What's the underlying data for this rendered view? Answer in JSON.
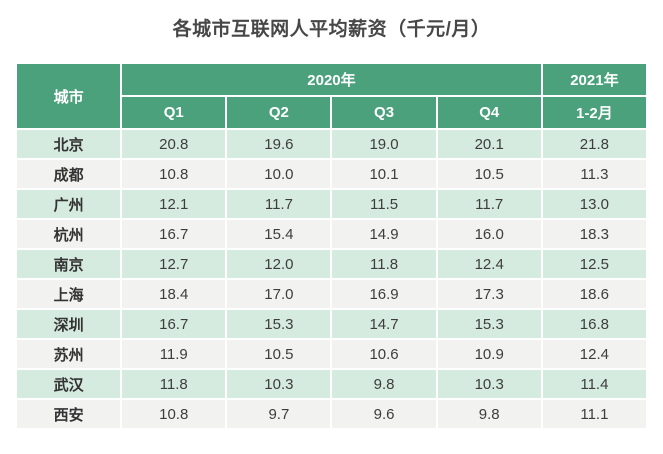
{
  "title": "各城市互联网人平均薪资（千元/月）",
  "table": {
    "city_header": "城市",
    "group_2020": "2020年",
    "group_2021": "2021年",
    "sub_headers": [
      "Q1",
      "Q2",
      "Q3",
      "Q4",
      "1-2月"
    ],
    "rows": [
      {
        "city": "北京",
        "values": [
          "20.8",
          "19.6",
          "19.0",
          "20.1",
          "21.8"
        ]
      },
      {
        "city": "成都",
        "values": [
          "10.8",
          "10.0",
          "10.1",
          "10.5",
          "11.3"
        ]
      },
      {
        "city": "广州",
        "values": [
          "12.1",
          "11.7",
          "11.5",
          "11.7",
          "13.0"
        ]
      },
      {
        "city": "杭州",
        "values": [
          "16.7",
          "15.4",
          "14.9",
          "16.0",
          "18.3"
        ]
      },
      {
        "city": "南京",
        "values": [
          "12.7",
          "12.0",
          "11.8",
          "12.4",
          "12.5"
        ]
      },
      {
        "city": "上海",
        "values": [
          "18.4",
          "17.0",
          "16.9",
          "17.3",
          "18.6"
        ]
      },
      {
        "city": "深圳",
        "values": [
          "16.7",
          "15.3",
          "14.7",
          "15.3",
          "16.8"
        ]
      },
      {
        "city": "苏州",
        "values": [
          "11.9",
          "10.5",
          "10.6",
          "10.9",
          "12.4"
        ]
      },
      {
        "city": "武汉",
        "values": [
          "11.8",
          "10.3",
          "9.8",
          "10.3",
          "11.4"
        ]
      },
      {
        "city": "西安",
        "values": [
          "10.8",
          "9.7",
          "9.6",
          "9.8",
          "11.1"
        ]
      }
    ]
  },
  "colors": {
    "header_green": "#4aa17c",
    "row_green": "#d6ebdf",
    "row_gray": "#f2f2f0",
    "title_text": "#474747",
    "cell_text": "#3d3d3d"
  },
  "chart_data": {
    "type": "table",
    "title": "各城市互联网人平均薪资（千元/月）",
    "unit": "千元/月",
    "categories": [
      "北京",
      "成都",
      "广州",
      "杭州",
      "南京",
      "上海",
      "深圳",
      "苏州",
      "武汉",
      "西安"
    ],
    "series": [
      {
        "name": "2020年 Q1",
        "values": [
          20.8,
          10.8,
          12.1,
          16.7,
          12.7,
          18.4,
          16.7,
          11.9,
          11.8,
          10.8
        ]
      },
      {
        "name": "2020年 Q2",
        "values": [
          19.6,
          10.0,
          11.7,
          15.4,
          12.0,
          17.0,
          15.3,
          10.5,
          10.3,
          9.7
        ]
      },
      {
        "name": "2020年 Q3",
        "values": [
          19.0,
          10.1,
          11.5,
          14.9,
          11.8,
          16.9,
          14.7,
          10.6,
          9.8,
          9.6
        ]
      },
      {
        "name": "2020年 Q4",
        "values": [
          20.1,
          10.5,
          11.7,
          16.0,
          12.4,
          17.3,
          15.3,
          10.9,
          10.3,
          9.8
        ]
      },
      {
        "name": "2021年 1-2月",
        "values": [
          21.8,
          11.3,
          13.0,
          18.3,
          12.5,
          18.6,
          16.8,
          12.4,
          11.4,
          11.1
        ]
      }
    ]
  }
}
